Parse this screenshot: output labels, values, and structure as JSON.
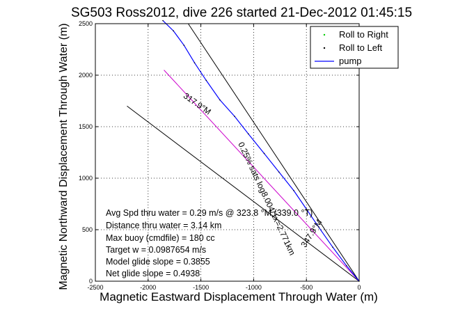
{
  "chart_data": {
    "type": "line",
    "title": "SG503 Ross2012, dive 226 started 21-Dec-2012 01:45:15",
    "xlabel": "Magnetic Eastward Displacement Through Water (m)",
    "ylabel": "Magnetic Northward Displacement Through Water (m)",
    "xlim": [
      -2500,
      0
    ],
    "ylim": [
      0,
      2500
    ],
    "xticks": [
      -2500,
      -2000,
      -1500,
      -1000,
      -500,
      0
    ],
    "yticks": [
      0,
      500,
      1000,
      1500,
      2000,
      2500
    ],
    "grid": true,
    "legend_position": "top-right",
    "legend": [
      {
        "label": "Roll to Right",
        "color": "#00cc00",
        "marker": "dot"
      },
      {
        "label": "Roll to Left",
        "color": "#000000",
        "marker": "dot"
      },
      {
        "label": "pump",
        "color": "#0000ff",
        "marker": "line"
      }
    ],
    "series": [
      {
        "name": "pump",
        "color": "#0000ff",
        "x": [
          0,
          -120,
          -250,
          -380,
          -500,
          -620,
          -760,
          -900,
          -1050,
          -1180,
          -1320,
          -1450,
          -1560,
          -1660,
          -1760,
          -1860
        ],
        "y": [
          0,
          150,
          330,
          520,
          700,
          880,
          1060,
          1240,
          1430,
          1600,
          1760,
          1950,
          2120,
          2290,
          2430,
          2530
        ]
      }
    ],
    "heading_lines": [
      {
        "color": "#000000",
        "x": [
          0,
          -1620
        ],
        "y": [
          0,
          2500
        ]
      },
      {
        "color": "#000000",
        "x": [
          0,
          -2200
        ],
        "y": [
          0,
          1700
        ]
      },
      {
        "color": "#cc00cc",
        "x": [
          0,
          -1850
        ],
        "y": [
          0,
          2050
        ]
      }
    ],
    "heading_line_labels": [
      {
        "text": "317.9°M",
        "x": -1550,
        "y": 1700,
        "angle": 35
      },
      {
        "text": "347.9°M",
        "x": -430,
        "y": 450,
        "angle": -57
      },
      {
        "text": "0.25% sats log8.004/1x=2.771km",
        "x": -900,
        "y": 790,
        "angle": 65
      }
    ],
    "annotations": [
      "Avg Spd thru water = 0.29 m/s @ 323.8 °M (339.0 °T)",
      "Distance thru water = 3.14 km",
      "Max buoy (cmdfile) = 180 cc",
      "Target w = 0.0987654 m/s",
      "Model glide slope = 0.3855",
      "Net glide slope = 0.4938"
    ]
  }
}
